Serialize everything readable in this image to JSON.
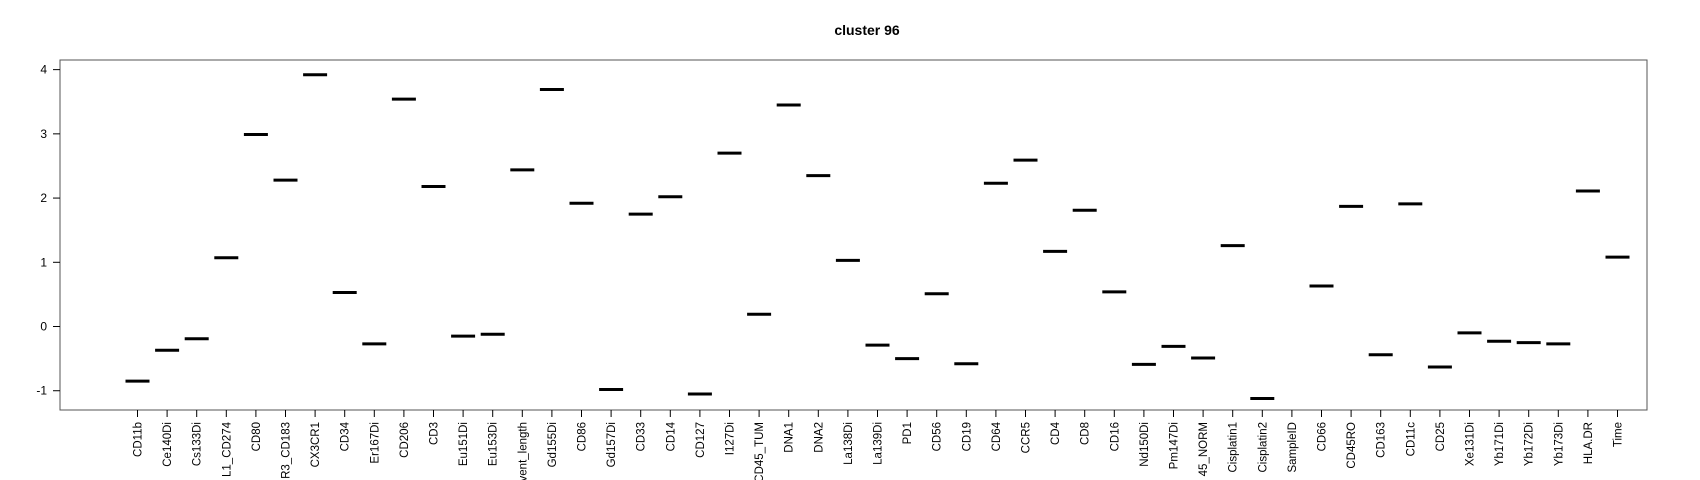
{
  "chart_data": {
    "type": "scatter",
    "marker": "horizontal-bar",
    "title": "cluster 96",
    "xlabel": "",
    "ylabel": "",
    "ylim": [
      -1.3,
      4.15
    ],
    "yticks": [
      -1,
      0,
      1,
      2,
      3,
      4
    ],
    "grid": false,
    "legend": "none",
    "color": "#000000",
    "categories": [
      "CD11b",
      "Ce140Di",
      "Cs133Di",
      "L1_CD274",
      "CD80",
      "R3_CD183",
      "CX3CR1",
      "CD34",
      "Er167Di",
      "CD206",
      "CD3",
      "Eu151Di",
      "Eu153Di",
      "vent_length",
      "Gd155Di",
      "CD86",
      "Gd157Di",
      "CD33",
      "CD14",
      "CD127",
      "I127Di",
      "CD45_TUM",
      "DNA1",
      "DNA2",
      "La138Di",
      "La139Di",
      "PD1",
      "CD56",
      "CD19",
      "CD64",
      "CCR5",
      "CD4",
      "CD8",
      "CD16",
      "Nd150Di",
      "Pm147Di",
      "45_NORM",
      "Cisplatin1",
      "Cisplatin2",
      "SampleID",
      "CD66",
      "CD45RO",
      "CD163",
      "CD11c",
      "CD25",
      "Xe131Di",
      "Yb171Di",
      "Yb172Di",
      "Yb173Di",
      "HLA.DR",
      "Time"
    ],
    "values": [
      -0.85,
      -0.37,
      -0.19,
      1.07,
      2.99,
      2.28,
      3.92,
      0.53,
      -0.27,
      3.54,
      2.18,
      -0.15,
      -0.12,
      2.44,
      3.69,
      1.92,
      -0.98,
      1.75,
      2.02,
      -1.05,
      2.7,
      0.19,
      3.45,
      2.35,
      1.03,
      -0.29,
      -0.5,
      0.51,
      -0.58,
      2.23,
      2.59,
      1.17,
      1.81,
      0.54,
      -0.59,
      -0.31,
      -0.49,
      1.26,
      -1.12,
      null,
      0.63,
      1.87,
      -0.44,
      1.91,
      -0.63,
      -0.1,
      -0.23,
      -0.25,
      -0.27,
      2.11,
      1.08
    ]
  }
}
